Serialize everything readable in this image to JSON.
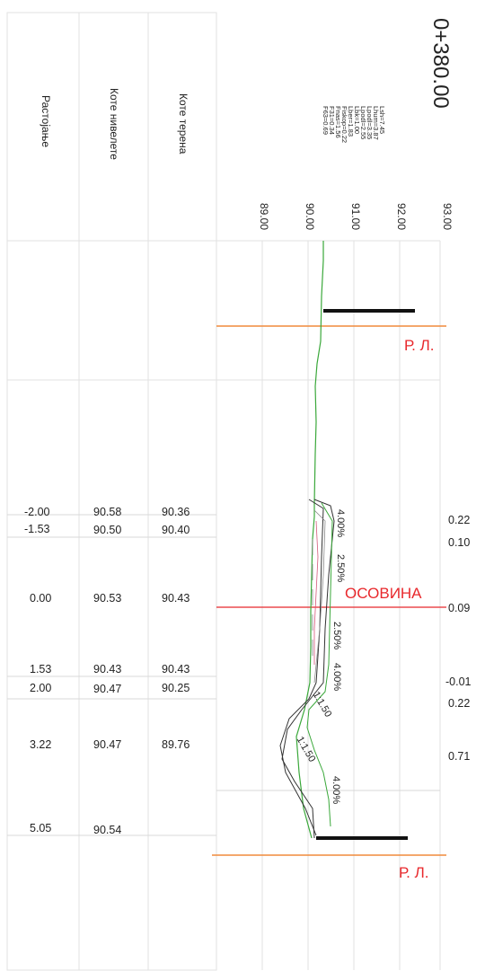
{
  "section": {
    "station": "0+380.00",
    "parameters": [
      "Lsh=7.45",
      "Lhum=3.87",
      "Lpodl=3.35",
      "Lpodl=2.55",
      "Lbk=1.00",
      "Lber=1.83",
      "Fiskop=0.22",
      "Fnas=1.56",
      "F31=0.34",
      "F63=0.69"
    ],
    "column_headers": {
      "distance": "Растојање",
      "grade_levels": "Коте нивелете",
      "terrain_levels": "Коте терена"
    },
    "elevation_ticks": [
      "89.00",
      "90.00",
      "91.00",
      "92.00",
      "93.00"
    ],
    "labels": {
      "rl_top": "Р. Л.",
      "rl_bottom": "Р. Л.",
      "axis": "ОСОВИНА"
    },
    "slopes": [
      "4.00%",
      "2.50%",
      "2.50%",
      "4.00%",
      "1:1.50",
      "1:1.50",
      "4.00%"
    ],
    "rows": [
      {
        "distance": "-2.00",
        "grade": "90.58",
        "terrain": "90.36",
        "diff": "0.22"
      },
      {
        "distance": "-1.53",
        "grade": "90.50",
        "terrain": "90.40",
        "diff": "0.10"
      },
      {
        "distance": "0.00",
        "grade": "90.53",
        "terrain": "90.43",
        "diff": "0.09"
      },
      {
        "distance": "1.53",
        "grade": "90.43",
        "terrain": "90.43",
        "diff": "-0.01"
      },
      {
        "distance": "2.00",
        "grade": "90.47",
        "terrain": "90.25",
        "diff": "0.22"
      },
      {
        "distance": "3.22",
        "grade": "90.47",
        "terrain": "89.76",
        "diff": "0.71"
      },
      {
        "distance": "5.05",
        "grade": "90.54",
        "terrain": "",
        "diff": ""
      }
    ],
    "colors": {
      "terrain_line": "#3aa83a",
      "reference_line": "#f08a3c",
      "axis_line": "#e8282c",
      "label_red": "#e8282c"
    }
  }
}
